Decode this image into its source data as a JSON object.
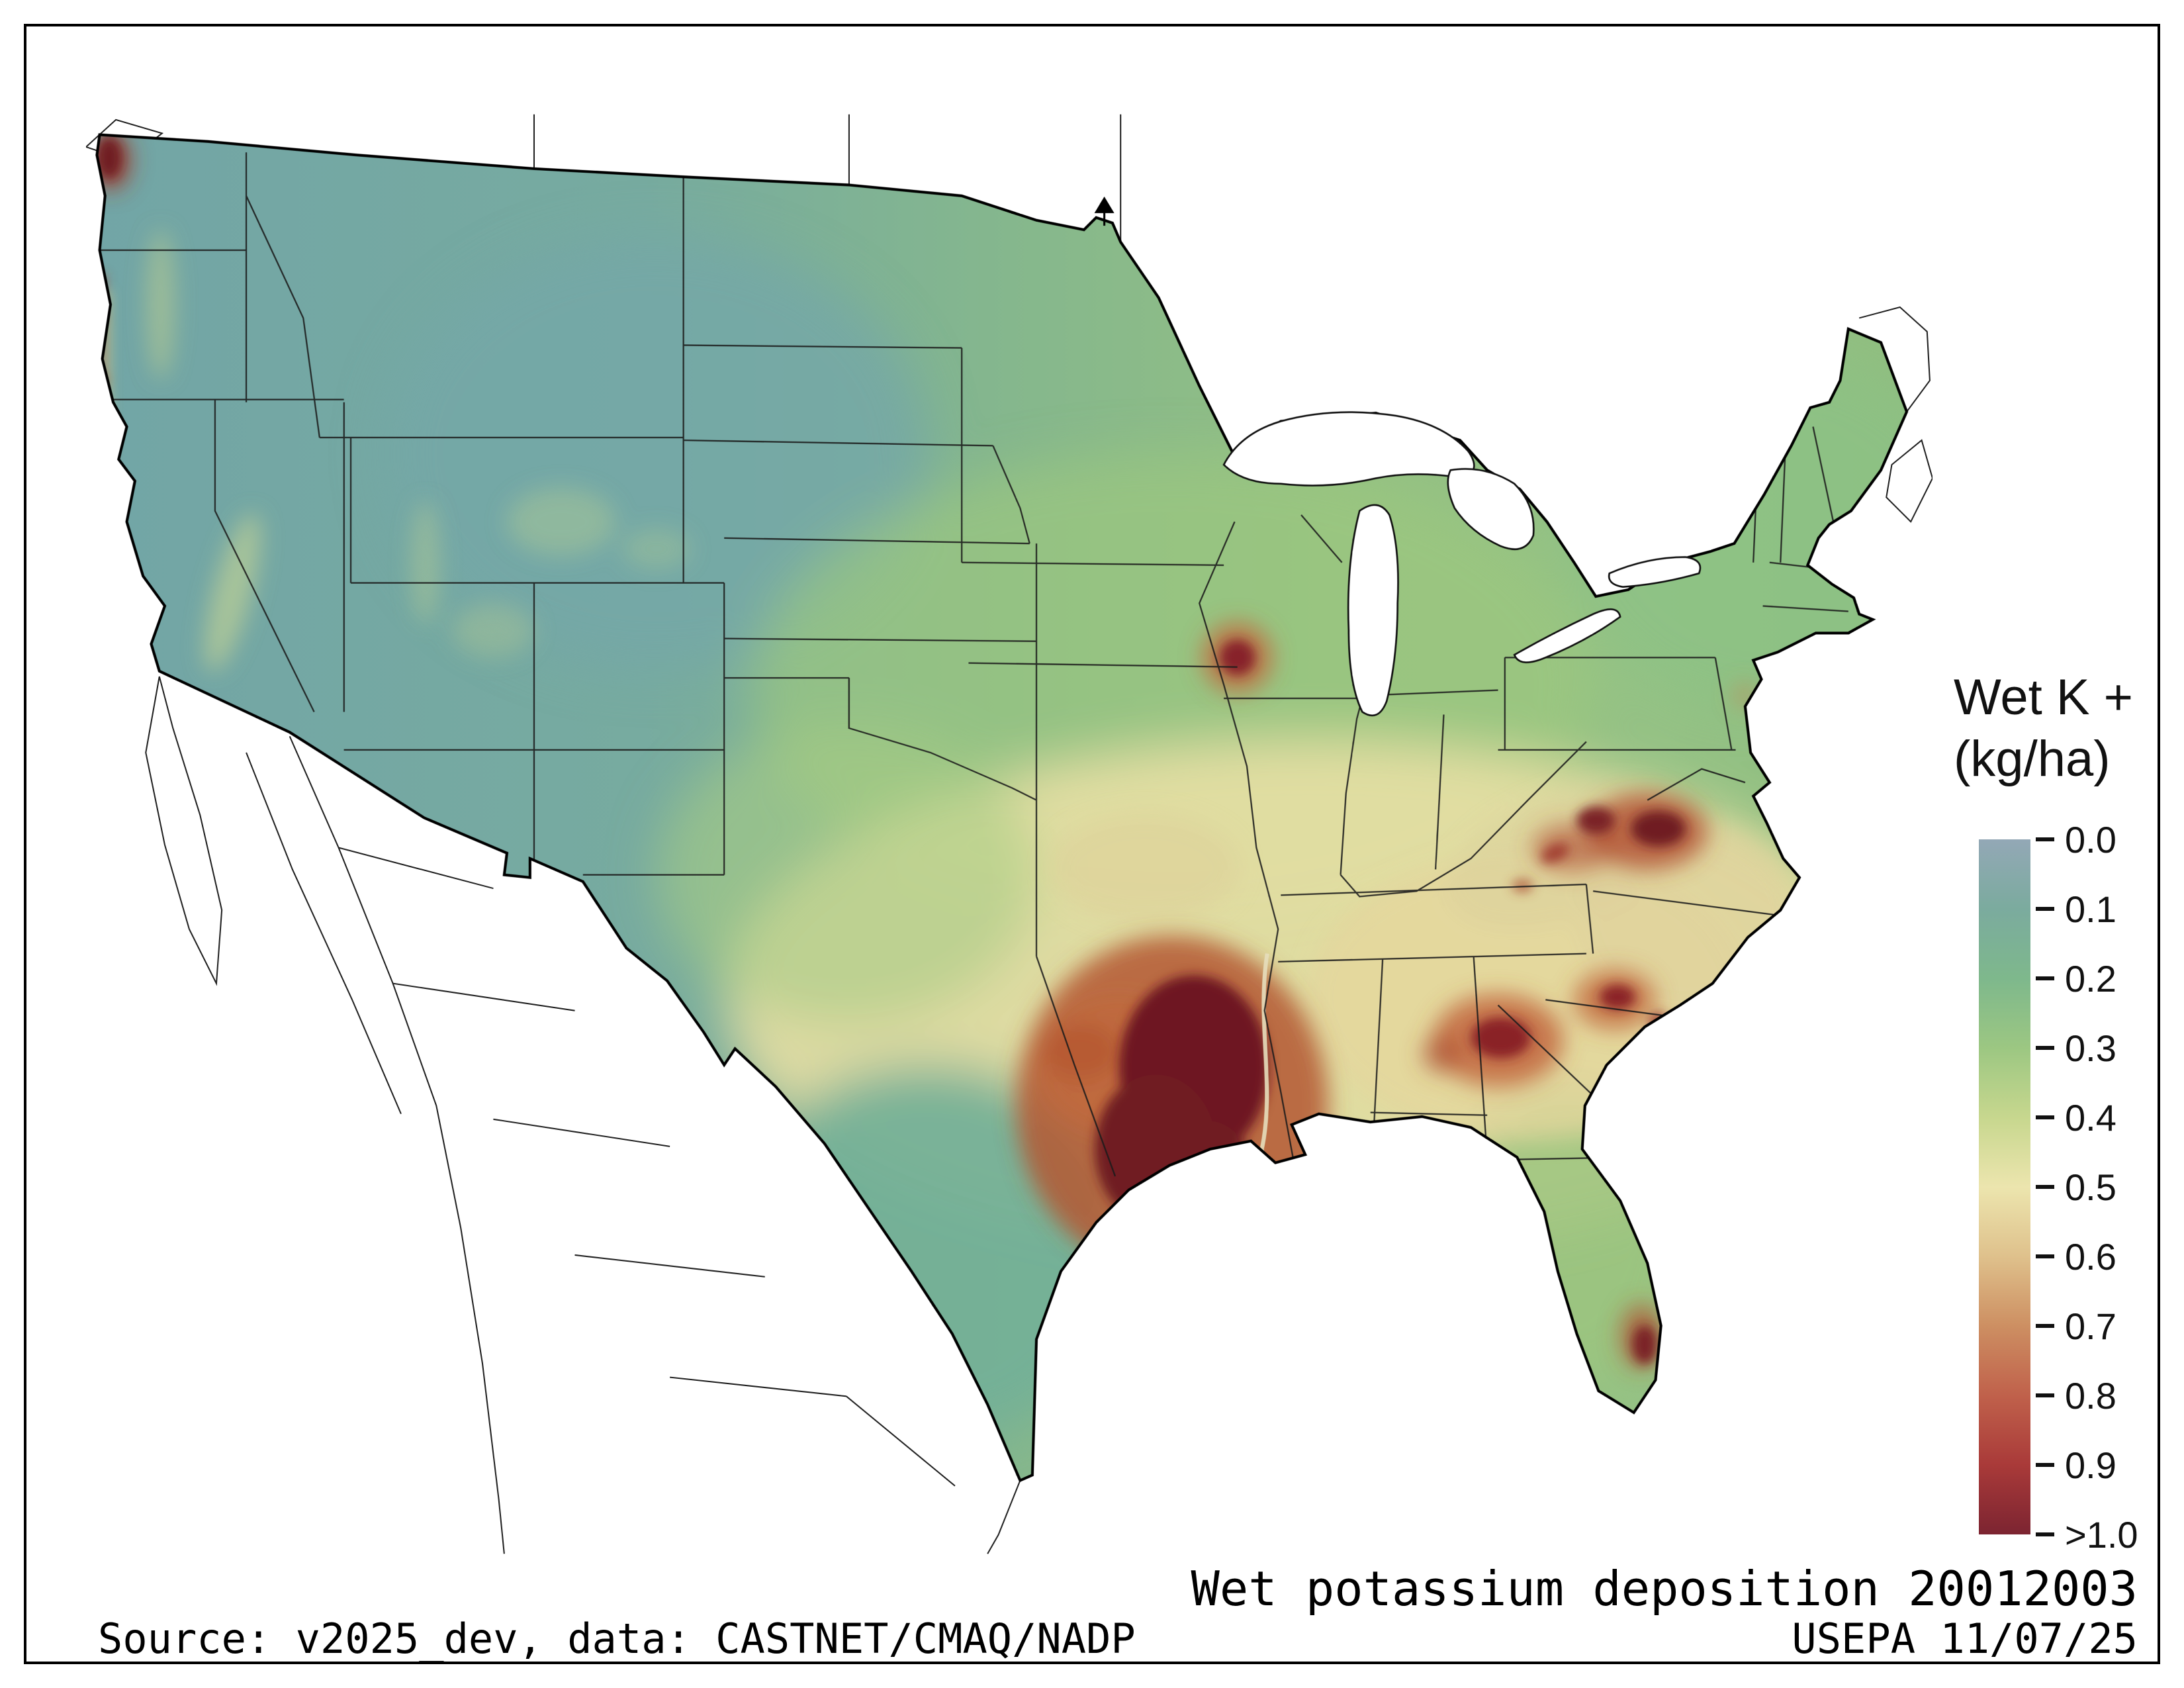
{
  "page": {
    "background": "#ffffff",
    "frame_color": "#000000"
  },
  "legend": {
    "title_line1": "Wet K +",
    "title_line2": "(kg/ha)",
    "ticks": [
      "0.0",
      "0.1",
      "0.2",
      "0.3",
      "0.4",
      "0.5",
      "0.6",
      "0.7",
      "0.8",
      "0.9",
      ">1.0"
    ],
    "colors": [
      "#93a8b6",
      "#7bab9e",
      "#7eb88c",
      "#9cc782",
      "#c7d78e",
      "#ece5ae",
      "#dfc18c",
      "#cd8f62",
      "#c0614b",
      "#a93a39",
      "#7c2431"
    ]
  },
  "captions": {
    "map_title": "Wet potassium deposition 20012003",
    "source": "Source: v2025_dev, data: CASTNET/CMAQ/NADP",
    "agency": "USEPA 11/07/25"
  },
  "chart_data": {
    "type": "heatmap",
    "title": "Wet potassium deposition 20012003",
    "variable": "Wet K +",
    "units": "kg/ha",
    "region": "Continental United States",
    "colorbar_ticks": [
      "0.0",
      "0.1",
      "0.2",
      "0.3",
      "0.4",
      "0.5",
      "0.6",
      "0.7",
      "0.8",
      "0.9",
      ">1.0"
    ],
    "colorbar_colors": [
      "#93a8b6",
      "#7bab9e",
      "#7eb88c",
      "#9cc782",
      "#c7d78e",
      "#ece5ae",
      "#dfc18c",
      "#cd8f62",
      "#c0614b",
      "#a93a39",
      "#7c2431"
    ],
    "legend_position": "right",
    "high_value_areas": [
      "Arkansas-Louisiana-East Texas",
      "Western North Carolina / Virginia",
      "South Carolina",
      "Central Georgia-Alabama",
      "South Florida",
      "Eastern Iowa",
      "Olympic Peninsula WA",
      "Oregon coast"
    ],
    "low_value_areas": [
      "Intermountain West",
      "Northern Rockies",
      "Great Basin",
      "West Texas"
    ]
  }
}
